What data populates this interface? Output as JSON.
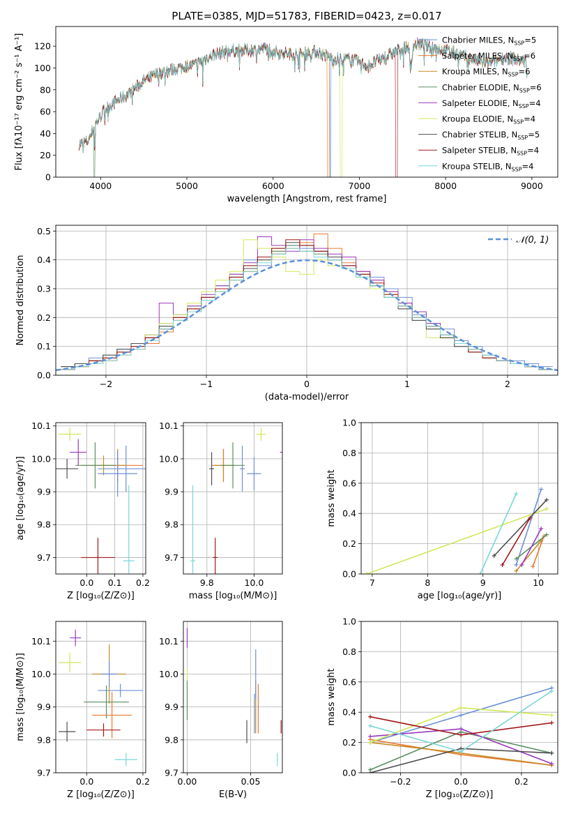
{
  "figure_title": "PLATE=0385, MJD=51783, FIBERID=0423, z=0.017",
  "series_colors": [
    "#6b8fd8",
    "#e8792e",
    "#c58a27",
    "#5a8f63",
    "#9b38bb",
    "#cfe85a",
    "#4d4d4d",
    "#a31818",
    "#7ad6d8"
  ],
  "chart_data": [
    {
      "id": "spectrum",
      "type": "line",
      "title": "PLATE=0385, MJD=51783, FIBERID=0423, z=0.017",
      "xlabel": "wavelength [Angstrom, rest frame]",
      "ylabel": "Flux [fλ10⁻¹⁷ erg cm⁻² s⁻¹ A⁻¹]",
      "xlim": [
        3480,
        9300
      ],
      "ylim": [
        0,
        138
      ],
      "xticks": [
        4000,
        5000,
        6000,
        7000,
        8000,
        9000
      ],
      "yticks": [
        0,
        20,
        40,
        60,
        80,
        100,
        120
      ],
      "legend_position": "top-right",
      "continuum_x": [
        3750,
        3850,
        3950,
        4050,
        4150,
        4300,
        4500,
        4700,
        4900,
        5100,
        5300,
        5500,
        5700,
        5900,
        6100,
        6300,
        6500,
        6700,
        6900,
        7100,
        7300,
        7500,
        7700,
        7900,
        8100,
        8300,
        8500,
        8700,
        8900
      ],
      "continuum_y": [
        30,
        33,
        50,
        62,
        68,
        75,
        88,
        96,
        100,
        103,
        112,
        116,
        116,
        118,
        114,
        112,
        115,
        108,
        108,
        102,
        110,
        118,
        122,
        118,
        114,
        108,
        104,
        110,
        106
      ],
      "series": [
        {
          "name": "Chabrier MILES, N_SSP=5"
        },
        {
          "name": "Salpeter MILES, N_SSP=6"
        },
        {
          "name": "Kroupa MILES, N_SSP=6"
        },
        {
          "name": "Chabrier ELODIE, N_SSP=6"
        },
        {
          "name": "Salpeter ELODIE, N_SSP=4"
        },
        {
          "name": "Kroupa ELODIE, N_SSP=4"
        },
        {
          "name": "Chabrier STELIB, N_SSP=5"
        },
        {
          "name": "Salpeter STELIB, N_SSP=4"
        },
        {
          "name": "Kroupa STELIB, N_SSP=4"
        }
      ]
    },
    {
      "id": "residuals",
      "type": "line",
      "xlabel": "(data-model)/error",
      "ylabel": "Normed distribution",
      "xlim": [
        -2.5,
        2.5
      ],
      "ylim": [
        0,
        0.52
      ],
      "xticks": [
        -2,
        -1,
        0,
        1,
        2
      ],
      "yticks": [
        0.0,
        0.1,
        0.2,
        0.3,
        0.4,
        0.5
      ],
      "grid": true,
      "legend_position": "top-right",
      "gaussian": {
        "name": "𝒩(0, 1)",
        "mean": 0,
        "sigma": 1
      },
      "histograms": [
        {
          "values": [
            0.03,
            0.04,
            0.06,
            0.06,
            0.09,
            0.1,
            0.13,
            0.18,
            0.19,
            0.22,
            0.27,
            0.3,
            0.34,
            0.4,
            0.38,
            0.42,
            0.45,
            0.44,
            0.43,
            0.4,
            0.38,
            0.36,
            0.34,
            0.3,
            0.27,
            0.21,
            0.18,
            0.16,
            0.12,
            0.1,
            0.07,
            0.05,
            0.05,
            0.04,
            0.03
          ]
        },
        {
          "values": [
            0.02,
            0.03,
            0.05,
            0.05,
            0.07,
            0.09,
            0.11,
            0.15,
            0.2,
            0.23,
            0.26,
            0.3,
            0.33,
            0.36,
            0.4,
            0.42,
            0.44,
            0.46,
            0.49,
            0.44,
            0.39,
            0.36,
            0.33,
            0.29,
            0.25,
            0.2,
            0.17,
            0.14,
            0.11,
            0.09,
            0.07,
            0.05,
            0.04,
            0.03,
            0.02
          ]
        },
        {
          "values": [
            0.02,
            0.03,
            0.04,
            0.06,
            0.08,
            0.1,
            0.13,
            0.16,
            0.19,
            0.22,
            0.26,
            0.29,
            0.33,
            0.36,
            0.4,
            0.43,
            0.44,
            0.45,
            0.43,
            0.41,
            0.38,
            0.35,
            0.31,
            0.28,
            0.24,
            0.2,
            0.17,
            0.13,
            0.11,
            0.08,
            0.06,
            0.05,
            0.04,
            0.03,
            0.02
          ]
        },
        {
          "values": [
            0.03,
            0.04,
            0.05,
            0.07,
            0.08,
            0.11,
            0.14,
            0.17,
            0.2,
            0.24,
            0.27,
            0.31,
            0.35,
            0.38,
            0.41,
            0.43,
            0.45,
            0.43,
            0.42,
            0.4,
            0.37,
            0.34,
            0.31,
            0.27,
            0.23,
            0.19,
            0.16,
            0.13,
            0.1,
            0.08,
            0.06,
            0.05,
            0.04,
            0.03,
            0.02
          ]
        },
        {
          "values": [
            0.02,
            0.04,
            0.05,
            0.06,
            0.08,
            0.1,
            0.14,
            0.25,
            0.21,
            0.24,
            0.28,
            0.31,
            0.35,
            0.39,
            0.48,
            0.45,
            0.43,
            0.47,
            0.44,
            0.42,
            0.41,
            0.36,
            0.33,
            0.29,
            0.25,
            0.22,
            0.18,
            0.14,
            0.11,
            0.09,
            0.07,
            0.05,
            0.04,
            0.03,
            0.02
          ]
        },
        {
          "values": [
            0.02,
            0.03,
            0.05,
            0.06,
            0.08,
            0.1,
            0.14,
            0.18,
            0.21,
            0.25,
            0.29,
            0.33,
            0.36,
            0.47,
            0.44,
            0.41,
            0.36,
            0.35,
            0.4,
            0.38,
            0.37,
            0.34,
            0.3,
            0.28,
            0.24,
            0.2,
            0.13,
            0.14,
            0.11,
            0.09,
            0.07,
            0.05,
            0.04,
            0.03,
            0.02
          ]
        },
        {
          "values": [
            0.03,
            0.04,
            0.05,
            0.07,
            0.09,
            0.11,
            0.13,
            0.17,
            0.2,
            0.23,
            0.27,
            0.3,
            0.34,
            0.37,
            0.4,
            0.44,
            0.46,
            0.45,
            0.43,
            0.41,
            0.38,
            0.35,
            0.31,
            0.27,
            0.23,
            0.19,
            0.16,
            0.13,
            0.1,
            0.08,
            0.06,
            0.05,
            0.04,
            0.03,
            0.02
          ]
        },
        {
          "values": [
            0.02,
            0.03,
            0.05,
            0.06,
            0.08,
            0.1,
            0.13,
            0.16,
            0.2,
            0.23,
            0.27,
            0.3,
            0.34,
            0.38,
            0.41,
            0.44,
            0.47,
            0.45,
            0.43,
            0.4,
            0.38,
            0.35,
            0.32,
            0.28,
            0.24,
            0.2,
            0.17,
            0.14,
            0.11,
            0.08,
            0.06,
            0.05,
            0.04,
            0.03,
            0.02
          ]
        },
        {
          "values": [
            0.02,
            0.03,
            0.04,
            0.05,
            0.07,
            0.09,
            0.12,
            0.16,
            0.19,
            0.22,
            0.26,
            0.29,
            0.33,
            0.36,
            0.39,
            0.42,
            0.44,
            0.43,
            0.41,
            0.4,
            0.37,
            0.34,
            0.31,
            0.27,
            0.24,
            0.2,
            0.17,
            0.14,
            0.11,
            0.09,
            0.07,
            0.05,
            0.04,
            0.03,
            0.02
          ]
        }
      ]
    },
    {
      "id": "age_vs_Z",
      "type": "scatter",
      "xlabel": "Z [log₁₀(Z/Z⊙)]",
      "ylabel": "age  [log₁₀(age/yr)]",
      "xlim": [
        -0.11,
        0.21
      ],
      "ylim": [
        9.65,
        10.11
      ],
      "xticks": [
        0.0,
        0.1,
        0.2
      ],
      "yticks": [
        9.7,
        9.8,
        9.9,
        10.0,
        10.1
      ],
      "grid": true,
      "points": [
        {
          "x": 0.14,
          "y": 9.97,
          "xerr": 0.1,
          "yerr": 0.07
        },
        {
          "x": 0.11,
          "y": 9.98,
          "xerr": 0.09,
          "yerr": 0.05
        },
        {
          "x": 0.06,
          "y": 9.98,
          "xerr": 0.08,
          "yerr": 0.03
        },
        {
          "x": 0.03,
          "y": 9.98,
          "xerr": 0.07,
          "yerr": 0.07
        },
        {
          "x": -0.03,
          "y": 10.02,
          "xerr": 0.03,
          "yerr": 0.04
        },
        {
          "x": -0.06,
          "y": 10.075,
          "xerr": 0.04,
          "yerr": 0.02
        },
        {
          "x": -0.07,
          "y": 9.97,
          "xerr": 0.04,
          "yerr": 0.03
        },
        {
          "x": 0.04,
          "y": 9.7,
          "xerr": 0.06,
          "yerr": 0.06
        },
        {
          "x": 0.15,
          "y": 9.69,
          "xerr": 0.02,
          "yerr": 0.23
        },
        {
          "x": 0.11,
          "y": 9.955,
          "xerr": 0.07,
          "yerr": 0.07
        }
      ]
    },
    {
      "id": "age_vs_mass",
      "type": "scatter",
      "xlabel": "mass [log₁₀(M/M⊙)]",
      "ylabel": "",
      "xlim": [
        9.7,
        10.12
      ],
      "ylim": [
        9.65,
        10.11
      ],
      "xticks": [
        9.8,
        10.0
      ],
      "yticks": [
        9.7,
        9.8,
        9.9,
        10.0,
        10.1
      ],
      "grid": true,
      "points": [
        {
          "x": 9.95,
          "y": 9.97,
          "xerr": 0.01,
          "yerr": 0.07
        },
        {
          "x": 9.87,
          "y": 9.98,
          "xerr": 0.05,
          "yerr": 0.05
        },
        {
          "x": 9.87,
          "y": 9.98,
          "xerr": 0.04,
          "yerr": 0.05
        },
        {
          "x": 9.91,
          "y": 9.98,
          "xerr": 0.05,
          "yerr": 0.07
        },
        {
          "x": 10.14,
          "y": 10.02,
          "xerr": 0.03,
          "yerr": 0.04
        },
        {
          "x": 10.03,
          "y": 10.075,
          "xerr": 0.02,
          "yerr": 0.02
        },
        {
          "x": 9.82,
          "y": 9.97,
          "xerr": 0.01,
          "yerr": 0.05
        },
        {
          "x": 9.835,
          "y": 9.7,
          "xerr": 0.01,
          "yerr": 0.06
        },
        {
          "x": 9.74,
          "y": 9.69,
          "xerr": 0.01,
          "yerr": 0.23
        },
        {
          "x": 10.0,
          "y": 9.955,
          "xerr": 0.03,
          "yerr": 0.05
        }
      ]
    },
    {
      "id": "weight_vs_age",
      "type": "line",
      "xlabel": "age  [log₁₀(age/yr)]",
      "ylabel": "mass weight",
      "xlim": [
        6.8,
        10.35
      ],
      "ylim": [
        0,
        1.0
      ],
      "xticks": [
        7,
        8,
        9,
        10
      ],
      "yticks": [
        0.0,
        0.2,
        0.4,
        0.6,
        0.8,
        1.0
      ],
      "grid": true,
      "series": [
        {
          "x": [
            9.6,
            10.05
          ],
          "y": [
            0.06,
            0.56
          ]
        },
        {
          "x": [
            9.9,
            10.1
          ],
          "y": [
            0.05,
            0.25
          ]
        },
        {
          "x": [
            9.6,
            10.05
          ],
          "y": [
            0.02,
            0.22
          ]
        },
        {
          "x": [
            9.6,
            10.15
          ],
          "y": [
            0.1,
            0.26
          ]
        },
        {
          "x": [
            9.7,
            10.05
          ],
          "y": [
            0.06,
            0.3
          ]
        },
        {
          "x": [
            6.9,
            10.15
          ],
          "y": [
            0.0,
            0.43
          ]
        },
        {
          "x": [
            9.2,
            10.15
          ],
          "y": [
            0.12,
            0.49
          ]
        },
        {
          "x": [
            9.35,
            9.85
          ],
          "y": [
            0.06,
            0.37
          ]
        },
        {
          "x": [
            8.95,
            9.6
          ],
          "y": [
            0.0,
            0.53
          ]
        }
      ]
    },
    {
      "id": "mass_vs_Z",
      "type": "scatter",
      "xlabel": "Z [log₁₀(Z/Z⊙)]",
      "ylabel": "mass [log₁₀(M/M⊙)]",
      "xlim": [
        -0.11,
        0.21
      ],
      "ylim": [
        9.7,
        10.16
      ],
      "xticks": [
        0.0,
        0.2
      ],
      "yticks": [
        9.7,
        9.8,
        9.9,
        10.0,
        10.1
      ],
      "grid": true,
      "points": [
        {
          "x": 0.12,
          "y": 9.95,
          "xerr": 0.08,
          "yerr": 0.02
        },
        {
          "x": 0.09,
          "y": 9.875,
          "xerr": 0.07,
          "yerr": 0.07
        },
        {
          "x": 0.08,
          "y": 10.0,
          "xerr": 0.06,
          "yerr": 0.09
        },
        {
          "x": 0.07,
          "y": 9.915,
          "xerr": 0.08,
          "yerr": 0.05
        },
        {
          "x": -0.04,
          "y": 10.11,
          "xerr": 0.02,
          "yerr": 0.025
        },
        {
          "x": -0.06,
          "y": 10.035,
          "xerr": 0.04,
          "yerr": 0.03
        },
        {
          "x": -0.07,
          "y": 9.825,
          "xerr": 0.03,
          "yerr": 0.03
        },
        {
          "x": 0.06,
          "y": 9.83,
          "xerr": 0.06,
          "yerr": 0.02
        },
        {
          "x": 0.14,
          "y": 9.74,
          "xerr": 0.04,
          "yerr": 0.02
        },
        {
          "x": 0.08,
          "y": 10.0,
          "xerr": 0.03,
          "yerr": 0.04
        }
      ]
    },
    {
      "id": "mass_vs_ebv",
      "type": "scatter",
      "xlabel": "E(B-V)",
      "ylabel": "",
      "xlim": [
        -0.003,
        0.075
      ],
      "ylim": [
        9.7,
        10.16
      ],
      "xticks": [
        0.0,
        0.05
      ],
      "yticks": [
        9.7,
        9.8,
        9.9,
        10.0,
        10.1
      ],
      "grid": true,
      "points": [
        {
          "x": 0.053,
          "y": 9.88,
          "yerr": 0.06
        },
        {
          "x": 0.056,
          "y": 9.895,
          "yerr": 0.075
        },
        {
          "x": 0.054,
          "y": 9.9,
          "yerr": 0.08
        },
        {
          "x": 0.0,
          "y": 9.92,
          "yerr": 0.06
        },
        {
          "x": 0.0,
          "y": 10.11,
          "yerr": 0.03
        },
        {
          "x": 0.0,
          "y": 10.0,
          "yerr": 0.02
        },
        {
          "x": 0.047,
          "y": 9.825,
          "yerr": 0.035
        },
        {
          "x": 0.074,
          "y": 9.84,
          "yerr": 0.02
        },
        {
          "x": 0.071,
          "y": 9.74,
          "yerr": 0.02
        },
        {
          "x": 0.054,
          "y": 10.0,
          "yerr": 0.075
        }
      ]
    },
    {
      "id": "weight_vs_Z",
      "type": "line",
      "xlabel": "Z [log₁₀(Z/Z⊙)]",
      "ylabel": "mass weight",
      "xlim": [
        -0.33,
        0.32
      ],
      "ylim": [
        0,
        1.0
      ],
      "xticks": [
        -0.2,
        0.0,
        0.2
      ],
      "yticks": [
        0.0,
        0.2,
        0.4,
        0.6,
        0.8,
        1.0
      ],
      "grid": true,
      "series": [
        {
          "x": [
            -0.3,
            0.0,
            0.3
          ],
          "y": [
            0.2,
            0.38,
            0.56
          ]
        },
        {
          "x": [
            -0.3,
            0.0,
            0.3
          ],
          "y": [
            0.22,
            0.12,
            0.05
          ]
        },
        {
          "x": [
            -0.3,
            0.0,
            0.3
          ],
          "y": [
            0.2,
            0.13,
            0.05
          ]
        },
        {
          "x": [
            -0.3,
            0.0,
            0.3
          ],
          "y": [
            0.02,
            0.27,
            0.13
          ]
        },
        {
          "x": [
            -0.3,
            0.0,
            0.3
          ],
          "y": [
            0.24,
            0.29,
            0.06
          ]
        },
        {
          "x": [
            -0.3,
            0.0,
            0.3
          ],
          "y": [
            0.2,
            0.43,
            0.38
          ]
        },
        {
          "x": [
            -0.3,
            0.0,
            0.3
          ],
          "y": [
            0.0,
            0.16,
            0.13
          ]
        },
        {
          "x": [
            -0.3,
            0.0,
            0.3
          ],
          "y": [
            0.37,
            0.25,
            0.33
          ]
        },
        {
          "x": [
            -0.3,
            0.0,
            0.3
          ],
          "y": [
            0.31,
            0.14,
            0.54
          ]
        }
      ]
    }
  ]
}
